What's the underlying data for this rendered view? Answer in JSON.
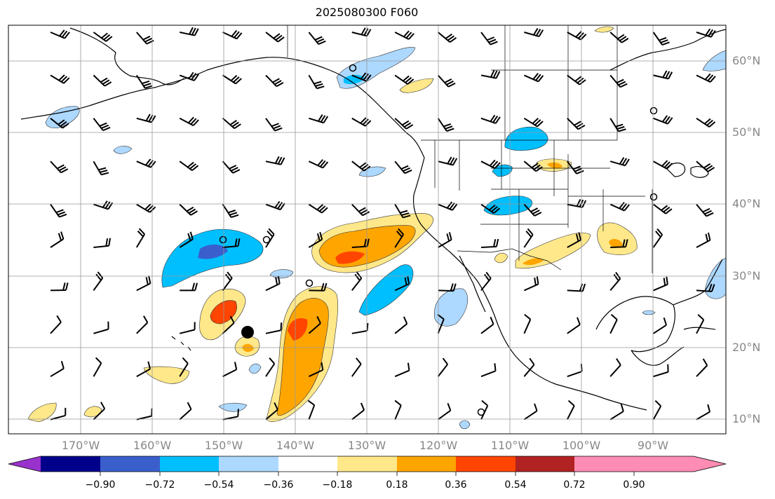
{
  "title": "2025080300 F060",
  "lat_labels": [
    "60°N",
    "50°N",
    "40°N",
    "30°N",
    "20°N",
    "10°N"
  ],
  "lon_labels": [
    "170°W",
    "160°W",
    "150°W",
    "140°W",
    "130°W",
    "120°W",
    "110°W",
    "100°W",
    "90°W"
  ],
  "colorbar": {
    "colors": [
      "#9932cc",
      "#00008b",
      "#3a5fcd",
      "#00bfff",
      "#add8ff",
      "#ffffff",
      "#ffe88a",
      "#ffa500",
      "#ff4500",
      "#b22222",
      "#ff8cb4"
    ],
    "tick_labels": [
      "−0.90",
      "−0.72",
      "−0.54",
      "−0.36",
      "−0.18",
      "0.18",
      "0.36",
      "0.54",
      "0.72",
      "0.90"
    ]
  }
}
